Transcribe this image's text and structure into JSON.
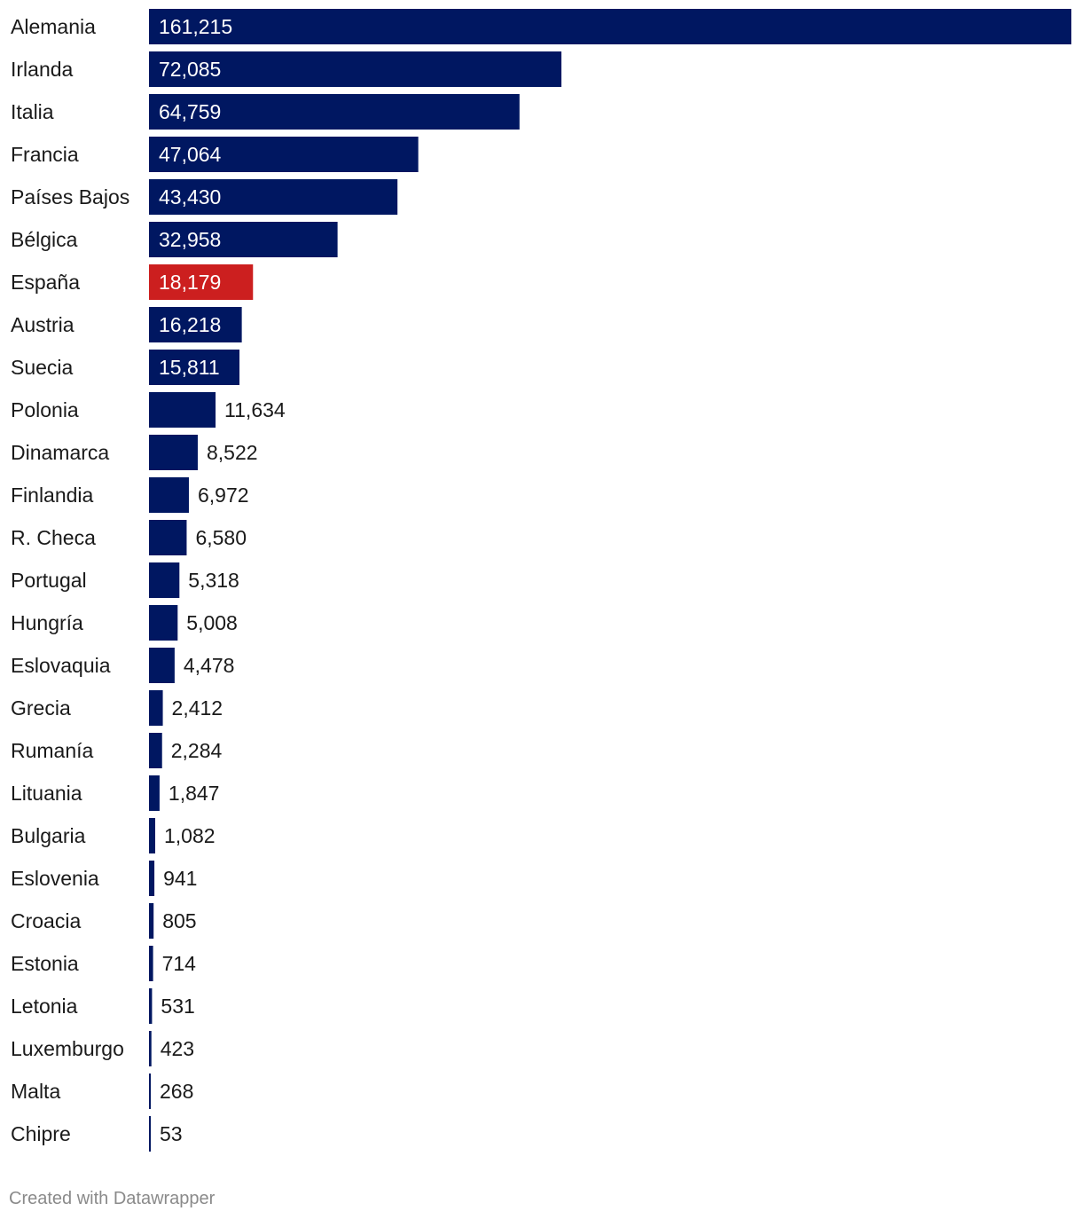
{
  "chart_data": {
    "type": "bar",
    "orientation": "horizontal",
    "categories": [
      "Alemania",
      "Irlanda",
      "Italia",
      "Francia",
      "Países Bajos",
      "Bélgica",
      "España",
      "Austria",
      "Suecia",
      "Polonia",
      "Dinamarca",
      "Finlandia",
      "R. Checa",
      "Portugal",
      "Hungría",
      "Eslovaquia",
      "Grecia",
      "Rumanía",
      "Lituania",
      "Bulgaria",
      "Eslovenia",
      "Croacia",
      "Estonia",
      "Letonia",
      "Luxemburgo",
      "Malta",
      "Chipre"
    ],
    "values": [
      161215,
      72085,
      64759,
      47064,
      43430,
      32958,
      18179,
      16218,
      15811,
      11634,
      8522,
      6972,
      6580,
      5318,
      5008,
      4478,
      2412,
      2284,
      1847,
      1082,
      941,
      805,
      714,
      531,
      423,
      268,
      53
    ],
    "value_labels": [
      "161,215",
      "72,085",
      "64,759",
      "47,064",
      "43,430",
      "32,958",
      "18,179",
      "16,218",
      "15,811",
      "11,634",
      "8,522",
      "6,972",
      "6,580",
      "5,318",
      "5,008",
      "4,478",
      "2,412",
      "2,284",
      "1,847",
      "1,082",
      "941",
      "805",
      "714",
      "531",
      "423",
      "268",
      "53"
    ],
    "highlight_category": "España",
    "colors": {
      "default_bar": "#001761",
      "highlight_bar": "#cc1f1f",
      "label_inside": "#ffffff",
      "label_outside": "#1a1a1a"
    },
    "title": "",
    "xlabel": "",
    "ylabel": "",
    "xlim": [
      0,
      161215
    ],
    "grid": false,
    "legend": "none"
  },
  "footer": {
    "credit": "Created with Datawrapper"
  }
}
